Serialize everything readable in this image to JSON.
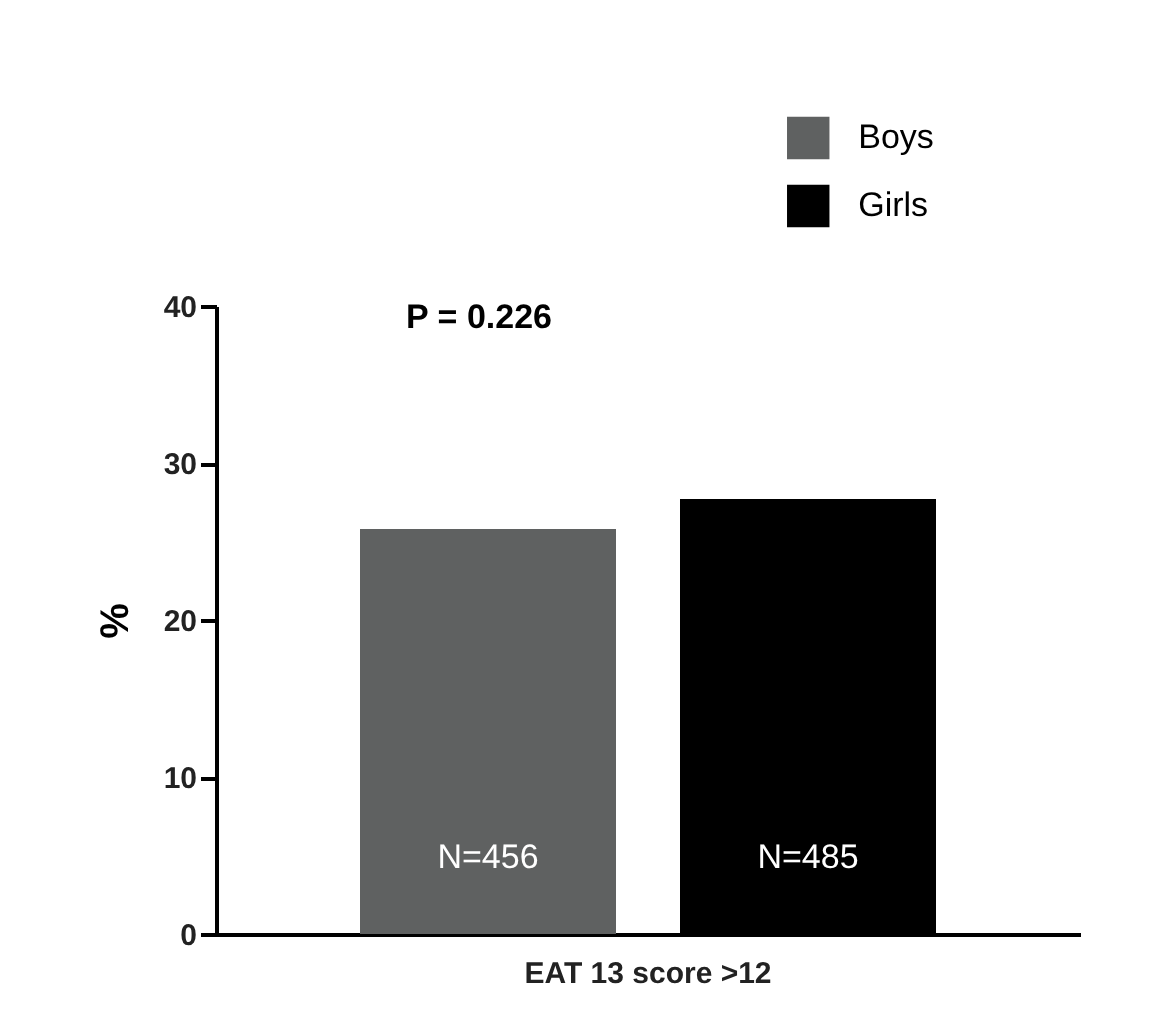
{
  "chart_data": {
    "type": "bar",
    "categories": [
      "EAT 13 score >12"
    ],
    "ylabel": "%",
    "series": [
      {
        "name": "Boys",
        "color": "#5f6161",
        "values": [
          25.8
        ]
      },
      {
        "name": "Girls",
        "color": "#000000",
        "values": [
          27.7
        ]
      }
    ],
    "ylim": [
      0,
      40
    ],
    "yticks": [
      0,
      10,
      20,
      30,
      40
    ],
    "grid": false,
    "legend": "top right",
    "annotations": [
      "P = 0.226",
      "N=456",
      "N=485"
    ]
  }
}
